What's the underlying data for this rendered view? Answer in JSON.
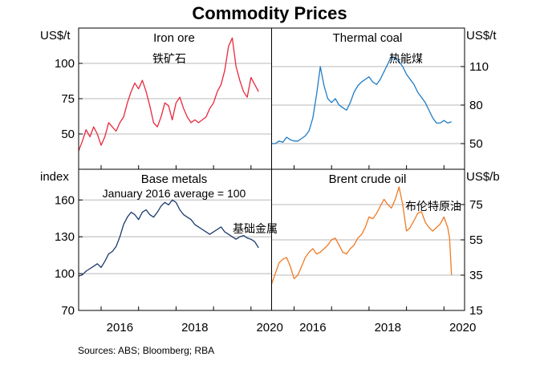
{
  "title": "Commodity Prices",
  "source": "Sources:   ABS; Bloomberg; RBA",
  "x_ticks": [
    "2016",
    "2018",
    "2020"
  ],
  "colors": {
    "red": "#e8283c",
    "blue": "#1f7bc4",
    "navy": "#1c3a6e",
    "orange": "#f07b24",
    "grid": "#b8b8b8"
  },
  "chart_data": [
    {
      "type": "line",
      "title": "Iron ore",
      "annotation": "铁矿石",
      "unit": "US$/t",
      "axis_side": "left",
      "ylim": [
        25,
        125
      ],
      "yticks": [
        50,
        75,
        100
      ],
      "yticks_shown": [
        "50",
        "75",
        "100"
      ],
      "xlim": [
        2015.4,
        2020.55
      ],
      "color": "#e8283c",
      "x": [
        2015.4,
        2015.5,
        2015.6,
        2015.7,
        2015.8,
        2015.9,
        2016.0,
        2016.1,
        2016.2,
        2016.3,
        2016.4,
        2016.5,
        2016.6,
        2016.7,
        2016.8,
        2016.9,
        2017.0,
        2017.1,
        2017.2,
        2017.3,
        2017.4,
        2017.5,
        2017.6,
        2017.7,
        2017.8,
        2017.9,
        2018.0,
        2018.1,
        2018.2,
        2018.3,
        2018.4,
        2018.5,
        2018.6,
        2018.7,
        2018.8,
        2018.9,
        2019.0,
        2019.1,
        2019.2,
        2019.3,
        2019.4,
        2019.5,
        2019.6,
        2019.7,
        2019.8,
        2019.9,
        2020.0,
        2020.1,
        2020.2
      ],
      "values": [
        38,
        45,
        53,
        48,
        55,
        50,
        42,
        48,
        58,
        55,
        52,
        58,
        62,
        72,
        80,
        86,
        82,
        88,
        80,
        70,
        58,
        55,
        62,
        72,
        70,
        60,
        72,
        76,
        68,
        62,
        58,
        60,
        58,
        60,
        62,
        68,
        72,
        80,
        85,
        95,
        112,
        118,
        98,
        88,
        80,
        76,
        90,
        85,
        80
      ]
    },
    {
      "type": "line",
      "title": "Thermal coal",
      "annotation": "热能煤",
      "unit": "US$/t",
      "axis_side": "right",
      "ylim": [
        30,
        140
      ],
      "yticks": [
        50,
        80,
        110
      ],
      "yticks_shown": [
        "50",
        "80",
        "110"
      ],
      "xlim": [
        2015.4,
        2020.55
      ],
      "color": "#1f7bc4",
      "x": [
        2015.4,
        2015.5,
        2015.6,
        2015.7,
        2015.8,
        2015.9,
        2016.0,
        2016.1,
        2016.2,
        2016.3,
        2016.4,
        2016.5,
        2016.6,
        2016.7,
        2016.8,
        2016.9,
        2017.0,
        2017.1,
        2017.2,
        2017.3,
        2017.4,
        2017.5,
        2017.6,
        2017.7,
        2017.8,
        2017.9,
        2018.0,
        2018.1,
        2018.2,
        2018.3,
        2018.4,
        2018.5,
        2018.6,
        2018.7,
        2018.8,
        2018.9,
        2019.0,
        2019.1,
        2019.2,
        2019.3,
        2019.4,
        2019.5,
        2019.6,
        2019.7,
        2019.8,
        2019.9,
        2020.0,
        2020.1,
        2020.2
      ],
      "values": [
        50,
        50,
        52,
        51,
        55,
        53,
        52,
        52,
        54,
        56,
        60,
        70,
        88,
        110,
        95,
        85,
        82,
        85,
        80,
        78,
        76,
        82,
        90,
        95,
        98,
        100,
        102,
        98,
        96,
        100,
        106,
        112,
        118,
        116,
        114,
        110,
        104,
        100,
        96,
        90,
        86,
        82,
        76,
        70,
        66,
        66,
        68,
        66,
        67
      ]
    },
    {
      "type": "line",
      "title": "Base metals",
      "subtitle": "January 2016 average = 100",
      "annotation": "基础金属",
      "unit": "index",
      "axis_side": "left",
      "ylim": [
        70,
        185
      ],
      "yticks": [
        70,
        100,
        130,
        160
      ],
      "yticks_shown": [
        "70",
        "100",
        "130",
        "160"
      ],
      "xlim": [
        2015.4,
        2020.55
      ],
      "color": "#1c3a6e",
      "x": [
        2015.4,
        2015.5,
        2015.6,
        2015.7,
        2015.8,
        2015.9,
        2016.0,
        2016.1,
        2016.2,
        2016.3,
        2016.4,
        2016.5,
        2016.6,
        2016.7,
        2016.8,
        2016.9,
        2017.0,
        2017.1,
        2017.2,
        2017.3,
        2017.4,
        2017.5,
        2017.6,
        2017.7,
        2017.8,
        2017.9,
        2018.0,
        2018.1,
        2018.2,
        2018.3,
        2018.4,
        2018.5,
        2018.6,
        2018.7,
        2018.8,
        2018.9,
        2019.0,
        2019.1,
        2019.2,
        2019.3,
        2019.4,
        2019.5,
        2019.6,
        2019.7,
        2019.8,
        2019.9,
        2020.0,
        2020.1,
        2020.2
      ],
      "values": [
        98,
        99,
        102,
        104,
        106,
        108,
        105,
        110,
        116,
        118,
        122,
        130,
        140,
        146,
        150,
        148,
        144,
        150,
        152,
        148,
        146,
        150,
        155,
        158,
        156,
        160,
        158,
        152,
        148,
        146,
        144,
        140,
        138,
        136,
        134,
        132,
        134,
        136,
        138,
        134,
        132,
        130,
        128,
        130,
        131,
        129,
        128,
        126,
        121
      ]
    },
    {
      "type": "line",
      "title": "Brent crude oil",
      "annotation": "布伦特原油",
      "unit": "US$/b",
      "axis_side": "right",
      "ylim": [
        15,
        95
      ],
      "yticks": [
        15,
        35,
        55,
        75
      ],
      "yticks_shown": [
        "15",
        "35",
        "55",
        "75"
      ],
      "xlim": [
        2015.4,
        2020.55
      ],
      "color": "#f07b24",
      "x": [
        2015.4,
        2015.5,
        2015.6,
        2015.7,
        2015.8,
        2015.9,
        2016.0,
        2016.1,
        2016.2,
        2016.3,
        2016.4,
        2016.5,
        2016.6,
        2016.7,
        2016.8,
        2016.9,
        2017.0,
        2017.1,
        2017.2,
        2017.3,
        2017.4,
        2017.5,
        2017.6,
        2017.7,
        2017.8,
        2017.9,
        2018.0,
        2018.1,
        2018.2,
        2018.3,
        2018.4,
        2018.5,
        2018.6,
        2018.7,
        2018.8,
        2018.9,
        2019.0,
        2019.1,
        2019.2,
        2019.3,
        2019.4,
        2019.5,
        2019.6,
        2019.7,
        2019.8,
        2019.9,
        2020.0,
        2020.1,
        2020.15,
        2020.2
      ],
      "values": [
        30,
        36,
        42,
        44,
        45,
        40,
        33,
        35,
        40,
        45,
        48,
        50,
        47,
        48,
        50,
        52,
        55,
        56,
        52,
        48,
        47,
        50,
        52,
        56,
        58,
        62,
        68,
        67,
        70,
        74,
        78,
        75,
        73,
        78,
        85,
        75,
        60,
        62,
        66,
        70,
        71,
        65,
        62,
        60,
        62,
        64,
        68,
        62,
        56,
        35
      ]
    }
  ]
}
